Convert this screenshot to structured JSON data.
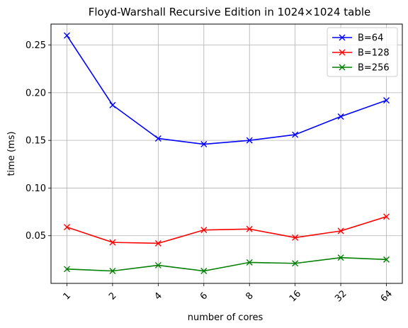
{
  "chart_data": {
    "type": "line",
    "title": "Floyd-Warshall Recursive Edition in 1024×1024 table",
    "xlabel": "number of cores",
    "ylabel": "time (ms)",
    "categories": [
      "1",
      "2",
      "4",
      "6",
      "8",
      "16",
      "32",
      "64"
    ],
    "ylim": [
      0.0,
      0.272
    ],
    "yticks": [
      0.05,
      0.1,
      0.15,
      0.2,
      0.25
    ],
    "ytick_labels": [
      "0.05",
      "0.10",
      "0.15",
      "0.20",
      "0.25"
    ],
    "grid": true,
    "legend_position": "top-right",
    "marker": "x",
    "series": [
      {
        "name": "B=64",
        "color": "#0000ff",
        "values": [
          0.26,
          0.187,
          0.152,
          0.146,
          0.15,
          0.156,
          0.175,
          0.192
        ]
      },
      {
        "name": "B=128",
        "color": "#ff0000",
        "values": [
          0.059,
          0.043,
          0.042,
          0.056,
          0.057,
          0.048,
          0.055,
          0.07
        ]
      },
      {
        "name": "B=256",
        "color": "#008000",
        "values": [
          0.015,
          0.013,
          0.019,
          0.013,
          0.022,
          0.021,
          0.027,
          0.025
        ]
      }
    ]
  }
}
